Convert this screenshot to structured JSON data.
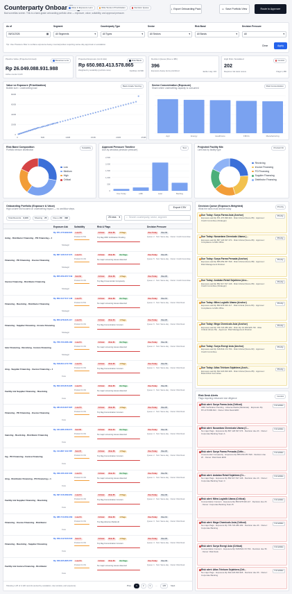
{
  "header": {
    "title": "Counterparty Onboarding",
    "subtitle": "Bad surveillas screen. This is a bank-grade onboarding portfolio view — exposure, value, suitability, and approval pressure.",
    "legend": [
      {
        "label": "Value & Exposure Lens",
        "color": "#3b6fd8"
      },
      {
        "label": "Risk-Tension Prioritization",
        "color": "#f29d38"
      },
      {
        "label": "Decision Queue",
        "color": "#d64545"
      }
    ],
    "buttons": {
      "export": "Export Onboarding Pack",
      "save": "Save Portfolio View",
      "route": "Route to Approver"
    }
  },
  "filters": {
    "as_of_label": "As of",
    "as_of_value": "06/01/2026",
    "segment_label": "Segment",
    "segment_value": "All Segments",
    "ctype_label": "Counterparty Type",
    "ctype_value": "All Types",
    "sector_label": "Sector",
    "sector_value": "All Sectors",
    "band_label": "Risk Band",
    "band_value": "All Bands",
    "pressure_label": "Decision Pressure",
    "pressure_value": "All",
    "tip": "Tip: Use Pressure filter to surface exposure-heavy counterparties requiring same-day approval or escalation.",
    "clear": "Clear",
    "apply": "Apply"
  },
  "kpis": [
    {
      "label": "Pipeline Value (Projected Annual)",
      "tag": "Revenue Lens",
      "value": "Rp 26.049.088.931.988",
      "sub": "Active 3,120 counterparties",
      "sub2": "Active counts 3,120"
    },
    {
      "label": "Projected Exposure (Limit Ask)",
      "tag": "Risk Basis",
      "value": "Rp 650.983.413.578.865",
      "sub": "Weighted by suitability (portfolio view)",
      "sub2": "Facilities 10,596"
    },
    {
      "label": "Decision Queue (Due ≤ 48h)",
      "tag": "",
      "value": "396",
      "sub": "Exposure-heavy items prioritized",
      "sub2": "Earlier stay 134"
    },
    {
      "label": "High Risk / Escalated",
      "tag": "Control",
      "value": "202",
      "sub": "Requires risk desk review",
      "sub2": "Flags 1,486"
    }
  ],
  "scatter": {
    "title": "Value vs Exposure (Prioritization)",
    "subtitle": "Bubble size = underwriting load",
    "tab": "Bank-Grade Scoring"
  },
  "sector_chart": {
    "title": "Sector Concentration (Exposure)",
    "subtitle": "Share where underwriting capacity is consumed",
    "tab": "Risk Concentration"
  },
  "band": {
    "title": "Risk Band Composition",
    "subtitle": "Portfolio tension distribution",
    "tab": "Suitability",
    "legend": [
      {
        "label": "Low",
        "color": "#3b6fd8"
      },
      {
        "label": "Medium",
        "color": "#7aa2f0"
      },
      {
        "label": "High",
        "color": "#f29d38"
      },
      {
        "label": "Critical",
        "color": "#d64545"
      }
    ]
  },
  "timeline": {
    "title": "Approval Pressure Timeline",
    "subtitle": "Due-by windows (decision pressure)",
    "tab": "SLA"
  },
  "facility": {
    "title": "Projected Facility Mix",
    "subtitle": "Limit ask by facility type",
    "tab": "Product Fit",
    "legend": [
      {
        "label": "Revolving",
        "color": "#3b6fd8"
      },
      {
        "label": "Invoice Financing",
        "color": "#f2c14e"
      },
      {
        "label": "PO Financing",
        "color": "#f29d38"
      },
      {
        "label": "Supplier Financing",
        "color": "#4caf7a"
      },
      {
        "label": "Distributor Financing",
        "color": "#8fb3f5"
      }
    ]
  },
  "table": {
    "title": "Onboarding Portfolio (Exposure & Value)",
    "subtitle": "High-volume list focused on underwriting impact — no workflow steps.",
    "export": "Export CSV",
    "total_label": "Total Records",
    "total": "3,120",
    "showing_label": "Showing",
    "showing": "25",
    "due_label": "Due ≤ 48h",
    "due": "396",
    "rows_select": "25 rows",
    "search_placeholder": "Search counterparty, sector, segment",
    "columns": [
      "Exposure Ask",
      "Suitability",
      "Risk & Flags",
      "Decision Pressure"
    ],
    "footer": "Showing 1-25 of 3,120 records (sorted by escalation, due window, and exposure)",
    "pager": {
      "prev": "Prev",
      "p1": "1",
      "p2": "2",
      "p3": "3",
      "ellipsis": "…",
      "last": "125",
      "next": "Next"
    }
  },
  "rows": [
    {
      "facility": "Aving · Distributor Financing · PO Financing + 1",
      "amount": "Rp 871.470.999.624",
      "tier": "Strategic",
      "s1": "Low F5",
      "s2": "Product Fit 5%",
      "risk": "Critical",
      "score": "Risk 86",
      "flags": "2 Flags",
      "flagtxt": "Top flag UBO Verification Pending",
      "pressure": "Due Today",
      "due": "Due 3h",
      "p2": "Queue: 2 · SLA: Same-day · Owner: Credit Committee"
    },
    {
      "facility": "Financing · PO Financing · Invoice Financing",
      "amount": "Rp 867.126.547.074",
      "tier": "Strategic",
      "s1": "Low F4",
      "s2": "Product Fit 4%",
      "risk": "Critical",
      "score": "Risk 86",
      "flags": "No Flags",
      "flagtxt": "No major screening issues detected",
      "pressure": "Due Today",
      "due": "Due 2h",
      "p2": "Queue: 5 · SLA: Same-day · Owner: Credit Committee"
    },
    {
      "facility": "Invoice Financing · Distributor Financing",
      "amount": "Rp 855.059.357.549",
      "tier": "Strategic",
      "s1": "Sub 64",
      "s2": "Product Fit 4%",
      "risk": "Critical",
      "score": "Risk 88",
      "flags": "1 Flags",
      "flagtxt": "Top flag Cross-border Complexity",
      "pressure": "Due Today",
      "due": "Due 2h",
      "p2": "Queue: 2 · SLA: Same-day · Owner: Credit Committee"
    },
    {
      "facility": "Financing · Revolving · Distributor Financing",
      "amount": "Rp 852.317.517.146",
      "tier": "Strategic",
      "s1": "Low F5",
      "s2": "Product Fit 5%",
      "risk": "Critical",
      "score": "Risk 89",
      "flags": "No Flags",
      "flagtxt": "No major screening issues detected",
      "pressure": "Due Today",
      "due": "Due 1h",
      "p2": "Queue: 3 · SLA: Same-day · Owner: Risk Desk"
    },
    {
      "facility": "Financing · Supplier Financing · Invoice Financing",
      "amount": "Rp 850.978.626.117",
      "tier": "Strategic",
      "s1": "Low F3",
      "s2": "Product Fit 3%",
      "risk": "Critical",
      "score": "Risk 84",
      "flags": "1 Flags",
      "flagtxt": "Top flag Concentration Concern",
      "pressure": "Due Today",
      "due": "Due 2h",
      "p2": "Queue: 6 · SLA: Same-day · Owner: Risk Desk"
    },
    {
      "facility": "Iutor Financing · Revolving · Invoice Financing",
      "amount": "Rp 766.723.286.182",
      "tier": "Strategic",
      "s1": "Low F4",
      "s2": "Product Fit 4%",
      "risk": "Critical",
      "score": "Risk 81",
      "flags": "No Flags",
      "flagtxt": "No major screening issues detected",
      "pressure": "Due Today",
      "due": "Due 4h",
      "p2": "Queue: 2 · SLA: Same-day · Owner: Risk Desk"
    },
    {
      "facility": "Aing · Supplier Financing · Invoice Financing + 1",
      "amount": "Rp 618.844.172.764",
      "tier": "Core",
      "s1": "Low F3",
      "s2": "Product Fit 3%",
      "risk": "Critical",
      "score": "Risk 82",
      "flags": "1 Flags",
      "flagtxt": "Top flag Concentration Concern",
      "pressure": "Due Today",
      "due": "Due 5h",
      "p2": "Queue: 1 · SLA: Same-day · Owner: Risk Desk"
    },
    {
      "facility": "Facility mix Supplier Financing · Revolving",
      "amount": "Rp 602.223.816.926",
      "tier": "Core",
      "s1": "Low F4",
      "s2": "Product Fit 4%",
      "risk": "Critical",
      "score": "Risk 85",
      "flags": "No Flags",
      "flagtxt": "No major screening issues detected",
      "pressure": "Due Today",
      "due": "Due 3h",
      "p2": "Queue: 3 · SLA: Same-day · Owner: Risk Desk"
    },
    {
      "facility": "Financing · PO Financing · Invoice Financing",
      "amount": "Rp 484.610.627.697",
      "tier": "Core",
      "s1": "Low F3",
      "s2": "Product Fit 3%",
      "risk": "Critical",
      "score": "Risk 86",
      "flags": "1 Flags",
      "flagtxt": "Top flag Concentration Concern",
      "pressure": "Due Today",
      "due": "Due 2h",
      "p2": "Queue: 2 · SLA: Same-day · Owner: Risk Desk"
    },
    {
      "facility": "Inancing · Revolving · Distributor Financing",
      "amount": "Rp 424.286.408.071",
      "tier": "Core",
      "s1": "Sub 62",
      "s2": "Product Fit 3%",
      "risk": "Critical",
      "score": "Risk 84",
      "flags": "No Flags",
      "flagtxt": "No major screening issues detected",
      "pressure": "Due Today",
      "due": "Due 4h",
      "p2": "Queue: 4 · SLA: Same-day · Owner: Risk Desk"
    },
    {
      "facility": "Ing · PO Financing · Invoice Financing",
      "amount": "Rp 414.867.112.587",
      "tier": "Core",
      "s1": "Sub 72",
      "s2": "Product Fit 3%",
      "risk": "Critical",
      "score": "Risk 86",
      "flags": "1 Flags",
      "flagtxt": "Top flag Concentration Concern",
      "pressure": "Due Today",
      "due": "Due 2h",
      "p2": "Queue: 2 · SLA: Same-day · Owner: Risk Desk"
    },
    {
      "facility": "Aing · Distributor Financing · PO Financing + 1",
      "amount": "Rp 409.160.422.434",
      "tier": "Core",
      "s1": "Low F4",
      "s2": "Product Fit 4%",
      "risk": "Critical",
      "score": "Risk 84",
      "flags": "No Flags",
      "flagtxt": "No major screening issues detected",
      "pressure": "Due Today",
      "due": "Due 5h",
      "p2": "Queue: 1 · SLA: Same-day · Owner: Risk Desk"
    },
    {
      "facility": "Facility mix Supplier Financing · Revolving",
      "amount": "Rp 397.216.289.951",
      "tier": "Core",
      "s1": "Low F4",
      "s2": "Product Fit 4%",
      "risk": "Critical",
      "score": "Risk 85",
      "flags": "2 Flags",
      "flagtxt": "Top flag Concentration Concern",
      "pressure": "Due Today",
      "due": "Due 3h",
      "p2": "Queue: 2 · SLA: Same-day · Owner: Risk Desk"
    },
    {
      "facility": "Financing · Invoice Financing · Distributor",
      "amount": "Rp 380.713.669.409",
      "tier": "Core",
      "s1": "Low F3",
      "s2": "Product Fit 3%",
      "risk": "Critical",
      "score": "Risk 80",
      "flags": "1 Flags",
      "flagtxt": "Top flag Adverse Media Hit",
      "pressure": "Due Today",
      "due": "Due 1h",
      "p2": "Queue: 3 · SLA: Same-day · Owner: Risk Desk"
    },
    {
      "facility": "Financing · Revolving · Supplier Financing",
      "amount": "Rp 359.412.520.518",
      "tier": "Core",
      "s1": "Sub 71",
      "s2": "Product Fit 3%",
      "risk": "Critical",
      "score": "Risk 81",
      "flags": "1 Flags",
      "flagtxt": "Top flag Concentration Concern",
      "pressure": "Due Today",
      "due": "Due 2h",
      "p2": "Queue: 4 · SLA: Same-day · Owner: Risk Desk"
    },
    {
      "facility": "Facility mix Invoice Financing · Distributor",
      "amount": "Rp 356.005.885.557",
      "tier": "Core",
      "s1": "Low F3",
      "s2": "Product Fit 3%",
      "risk": "Critical",
      "score": "Risk 80",
      "flags": "No Flags",
      "flagtxt": "No major screening issues detected",
      "pressure": "Due Today",
      "due": "Due 3h",
      "p2": "Queue: 1 · SLA: Same-day · Owner: Risk Desk"
    }
  ],
  "queue": {
    "title": "Decision Queue (Exposure-Weighted)",
    "subtitle": "What the bank must decide today",
    "tab": "Priority",
    "items": [
      {
        "name": "Due Today: Surya Farma Asia (Anchor)",
        "desc": "Exposure ask Rp 871.470.999.624 · Risk Critical (Score 86) · Approver: Credit Committee (Strategic)",
        "tag": "Priority"
      },
      {
        "name": "Due Today: Nusantara Chemicals Utama (...",
        "desc": "Exposure ask Rp 867.126.547.074 · Risk Critical (Score 86) · Approver: Compliance & AML Office",
        "tag": "Priority"
      },
      {
        "name": "Due Today: Surya Farma Persada (Anchor)",
        "desc": "Exposure ask Rp 855.059.357.549 · Risk Critical (Score 88) · Approver: Risk Management Division",
        "tag": "Priority"
      },
      {
        "name": "Due Today: Andalan Retail Sejahtera (Anc...",
        "desc": "Exposure ask Rp 852.317.517.146 · Risk Critical (Score 89) · Approver: Credit Committee (Strategic)",
        "tag": "Priority"
      },
      {
        "name": "Due Today: Mitra Logistik Utama (Anchor)",
        "desc": "Exposure ask Rp 850.978.626.117 · Risk Critical (Score 84) · Approver: Compliance & AML Office",
        "tag": "Priority"
      },
      {
        "name": "Due Today: Mega Chemicals Asia (Anchor)",
        "desc": "Exposure ask Rp 766.723.286.182 · Risk: Rp 34.269.925.740 · Risk Critical (Score 81) · Approver: Risk Management Division",
        "tag": "Priority"
      },
      {
        "name": "Due Today: Surya Energi Asia (Anchor)",
        "desc": "Exposure ask Rp 618.844.172.764 · Risk Critical (Score 82) · Approver: Credit Committee",
        "tag": "Priority"
      },
      {
        "name": "Due Today: Atlas Telekom Sejahtera (Anch...",
        "desc": "Exposure ask Rp 602.223.816.926 · Risk Critical (Score 85) · Approver: Board Risk Committee",
        "tag": "Priority"
      }
    ]
  },
  "alerts": {
    "title": "Risk Desk Alerts",
    "subtitle": "Flags requiring enhanced due diligence",
    "tab": "Control",
    "items": [
      {
        "name": "Risk alert: Surya Farma Asia (Critical)",
        "desc": "UBO Verification Pending · Adverse Media (Moderate) · Exposure Rp 871.470.999.624 · Owner: Risk Desk EDD",
        "tag": "Immediate"
      },
      {
        "name": "Risk alert: Nusantara Chemicals Utama (C...",
        "desc": "No major flags · Exposure Rp 867.126.547.074 · Decision due 2h · Owner: Corporate Banking Team A",
        "tag": "Immediate"
      },
      {
        "name": "Risk alert: Surya Farma Persada (Critic...",
        "desc": "Cross-border Complexity · Exposure Rp 855.059.357.549 · Decision due 2h · Owner: Risk Desk EDD",
        "tag": "Immediate"
      },
      {
        "name": "Risk alert: Andalan Retail Sejahtera (Cr...",
        "desc": "No major flags · Exposure Rp 852.317.517.146 · Decision due 1h · Owner: Corporate Banking Team C",
        "tag": "Immediate"
      },
      {
        "name": "Risk alert: Mitra Logistik Utama (Critical)",
        "desc": "Concentration Concern · Exposure Rp 850.978.626.117 · Decision due 2h · Owner: Corporate Banking Team B",
        "tag": "Immediate"
      },
      {
        "name": "Risk alert: Mega Chemicals Asia (Critical)",
        "desc": "No major flags · Exposure Rp 766.723.286.182 · Decision due 4h · Owner: Corporate Banking",
        "tag": "Immediate"
      },
      {
        "name": "Risk alert: Surya Energi Asia (Critical)",
        "desc": "Concentration Concern · Exposure Rp 618.844.172.764 · Decision due 5h · Owner: Risk Desk",
        "tag": "Immediate"
      },
      {
        "name": "Risk alert: Atlas Telekom Sejahtera (Crit...",
        "desc": "No major flags · Exposure Rp 602.223.816.926 · Decision due 3h · Owner: Corporate Banking",
        "tag": "Immediate"
      }
    ]
  },
  "chart_data": [
    {
      "type": "scatter",
      "title": "Value vs Exposure (Prioritization)",
      "xlabel": "",
      "ylabel": "",
      "x_ticks": [
        "0",
        "50B",
        "100B",
        "150B",
        "200B",
        "250B"
      ],
      "y_ticks": [
        "0",
        "200B",
        "400B",
        "600B",
        "800B"
      ],
      "xlim": [
        0,
        250
      ],
      "ylim": [
        0,
        900
      ],
      "series": [
        {
          "x": [
            2,
            4,
            6,
            8,
            10,
            12,
            14,
            16,
            18,
            20,
            22,
            24,
            26,
            28,
            30,
            32,
            34,
            36,
            38,
            40,
            42,
            45,
            48,
            50,
            52,
            55,
            58,
            60,
            62,
            65,
            68,
            70,
            72,
            75,
            78,
            80,
            85,
            90,
            95,
            100,
            105,
            110,
            115,
            120,
            125,
            130,
            135,
            140,
            145,
            150,
            155,
            160,
            165,
            170,
            175,
            180,
            185,
            190,
            195,
            200,
            205,
            210,
            215,
            220,
            225,
            230,
            235,
            240
          ],
          "y": [
            10,
            15,
            25,
            30,
            40,
            45,
            55,
            60,
            70,
            72,
            85,
            90,
            95,
            105,
            110,
            120,
            128,
            130,
            140,
            150,
            155,
            160,
            170,
            178,
            185,
            190,
            200,
            210,
            215,
            225,
            235,
            240,
            248,
            255,
            265,
            270,
            285,
            300,
            315,
            330,
            345,
            360,
            375,
            390,
            405,
            420,
            435,
            450,
            465,
            480,
            495,
            510,
            525,
            540,
            555,
            570,
            585,
            600,
            615,
            630,
            645,
            660,
            675,
            690,
            705,
            720,
            735,
            860
          ]
        }
      ]
    },
    {
      "type": "bar",
      "title": "Sector Concentration (Exposure)",
      "categories": [
        "Agri",
        "Energy",
        "Healthcare",
        "FMCG",
        "Manufacturing"
      ],
      "values": [
        100,
        98,
        97,
        95,
        94
      ],
      "ylim": [
        0,
        110
      ]
    },
    {
      "type": "pie",
      "title": "Risk Band Composition",
      "categories": [
        "Low",
        "Medium",
        "High",
        "Critical"
      ],
      "values": [
        28,
        32,
        22,
        18
      ]
    },
    {
      "type": "bar",
      "title": "Approval Pressure Timeline",
      "categories": [
        "Due Today",
        "≤48h",
        "Later",
        "Backlog"
      ],
      "values": [
        140,
        256,
        2120,
        604
      ],
      "y_ticks": [
        "0",
        "500",
        "1,000",
        "1,500",
        "2,000",
        "2,500"
      ],
      "ylim": [
        0,
        2500
      ]
    },
    {
      "type": "pie",
      "title": "Projected Facility Mix",
      "categories": [
        "Revolving",
        "Invoice Financing",
        "PO Financing",
        "Supplier Financing",
        "Distributor Financing"
      ],
      "values": [
        24,
        21,
        19,
        18,
        18
      ]
    }
  ]
}
